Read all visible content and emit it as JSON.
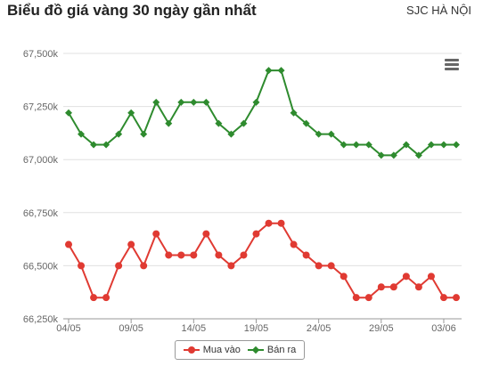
{
  "header": {
    "title": "Biểu đồ giá vàng 30 ngày gần nhất",
    "subtitle": "SJC HÀ NỘI"
  },
  "menu": {
    "icon": "hamburger-menu-icon"
  },
  "colors": {
    "buy": "#e03a32",
    "sell": "#2e8b2e",
    "grid": "#e0e0e0",
    "axis": "#999999"
  },
  "chart_data": {
    "type": "line",
    "title": "Biểu đồ giá vàng 30 ngày gần nhất",
    "subtitle": "SJC HÀ NỘI",
    "xlabel": "",
    "ylabel": "",
    "ylim": [
      66250,
      67500
    ],
    "yticks": [
      66250,
      66500,
      66750,
      67000,
      67250,
      67500
    ],
    "ytick_labels": [
      "66,250k",
      "66,500k",
      "66,750k",
      "67,000k",
      "67,250k",
      "67,500k"
    ],
    "xtick_labels": [
      "04/05",
      "09/05",
      "14/05",
      "19/05",
      "24/05",
      "29/05",
      "03/06"
    ],
    "xtick_indices": [
      0,
      5,
      10,
      15,
      20,
      25,
      30
    ],
    "grid": true,
    "legend_position": "bottom-center",
    "series": [
      {
        "name": "Mua vào",
        "marker": "circle",
        "color": "#e03a32",
        "values": [
          66600,
          66500,
          66350,
          66350,
          66500,
          66600,
          66500,
          66650,
          66550,
          66550,
          66550,
          66650,
          66550,
          66500,
          66550,
          66650,
          66700,
          66700,
          66600,
          66550,
          66500,
          66500,
          66450,
          66350,
          66350,
          66400,
          66400,
          66450,
          66400,
          66450,
          66350,
          66350
        ]
      },
      {
        "name": "Bán ra",
        "marker": "diamond",
        "color": "#2e8b2e",
        "values": [
          67220,
          67120,
          67070,
          67070,
          67120,
          67220,
          67120,
          67270,
          67170,
          67270,
          67270,
          67270,
          67170,
          67120,
          67170,
          67270,
          67420,
          67420,
          67220,
          67170,
          67120,
          67120,
          67070,
          67070,
          67070,
          67020,
          67020,
          67070,
          67020,
          67070,
          67070,
          67070
        ]
      }
    ]
  }
}
